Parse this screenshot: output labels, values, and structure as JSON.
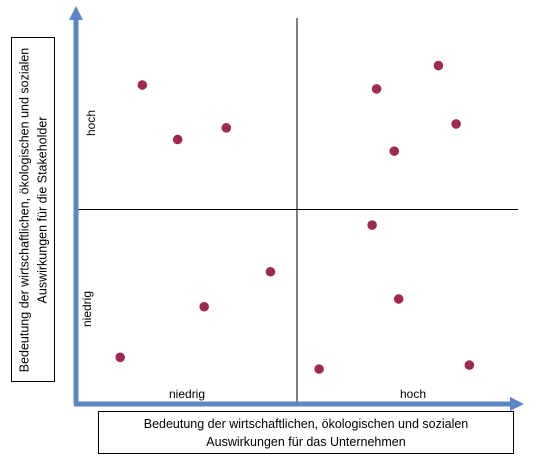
{
  "chart_data": {
    "type": "scatter",
    "title": "",
    "xlabel_lines": [
      "Bedeutung der wirtschaftlichen, ökologischen und sozialen",
      "Auswirkungen für das Unternehmen"
    ],
    "ylabel_lines": [
      "Bedeutung der wirtschaftlichen, ökologischen und sozialen",
      "Auswirkungen für die Stakeholder"
    ],
    "x_ticks": [
      "niedrig",
      "hoch"
    ],
    "y_ticks": [
      "niedrig",
      "hoch"
    ],
    "xlim": [
      0,
      100
    ],
    "ylim": [
      0,
      100
    ],
    "grid": false,
    "dividers": {
      "x": 50,
      "y": 50
    },
    "point_color": "#a0294f",
    "axis_color": "#5b87c6",
    "points": [
      {
        "x": 15,
        "y": 82
      },
      {
        "x": 23,
        "y": 68
      },
      {
        "x": 34,
        "y": 71
      },
      {
        "x": 68,
        "y": 81
      },
      {
        "x": 82,
        "y": 87
      },
      {
        "x": 86,
        "y": 72
      },
      {
        "x": 72,
        "y": 65
      },
      {
        "x": 67,
        "y": 46
      },
      {
        "x": 73,
        "y": 27
      },
      {
        "x": 89,
        "y": 10
      },
      {
        "x": 55,
        "y": 9
      },
      {
        "x": 44,
        "y": 34
      },
      {
        "x": 29,
        "y": 25
      },
      {
        "x": 10,
        "y": 12
      }
    ]
  }
}
